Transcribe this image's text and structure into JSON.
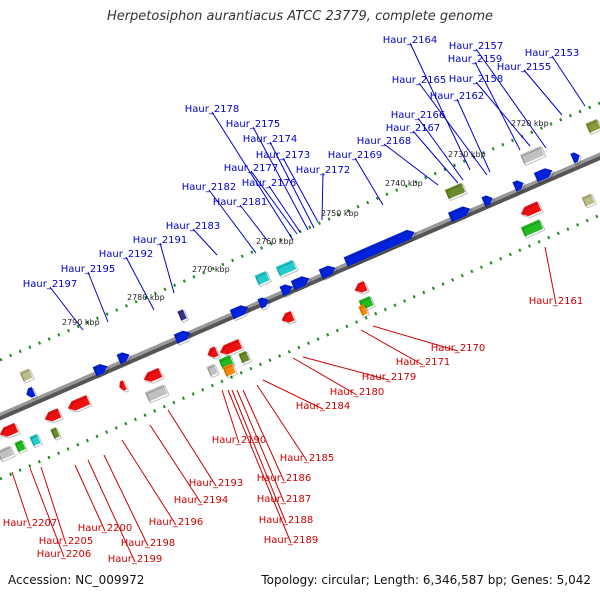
{
  "header": {
    "title": "Herpetosiphon aurantiacus ATCC 23779, complete genome"
  },
  "footer": {
    "accession": "Accession: NC_009972",
    "topology": "Topology: circular; Length: 6,346,587 bp; Genes: 5,042"
  },
  "colors": {
    "backbone": "#888888",
    "forward_label": "#0000cc",
    "reverse_label": "#cc0000",
    "tick": "#228822",
    "forward_gene": "#0022dd",
    "reverse_gene": "#ee1111"
  },
  "ticks": [
    "2720 kbp",
    "2730 kbp",
    "2740 kbp",
    "2750 kbp",
    "2760 kbp",
    "2770 kbp",
    "2780 kbp",
    "2790 kbp"
  ],
  "forward_genes": [
    "Haur_2153",
    "Haur_2155",
    "Haur_2157",
    "Haur_2158",
    "Haur_2159",
    "Haur_2162",
    "Haur_2164",
    "Haur_2165",
    "Haur_2166",
    "Haur_2167",
    "Haur_2168",
    "Haur_2169",
    "Haur_2172",
    "Haur_2173",
    "Haur_2174",
    "Haur_2175",
    "Haur_2176",
    "Haur_2177",
    "Haur_2178",
    "Haur_2181",
    "Haur_2182",
    "Haur_2183",
    "Haur_2191",
    "Haur_2192",
    "Haur_2195",
    "Haur_2197"
  ],
  "reverse_genes": [
    "Haur_2161",
    "Haur_2170",
    "Haur_2171",
    "Haur_2179",
    "Haur_2180",
    "Haur_2184",
    "Haur_2185",
    "Haur_2186",
    "Haur_2187",
    "Haur_2188",
    "Haur_2189",
    "Haur_2190",
    "Haur_2193",
    "Haur_2194",
    "Haur_2196",
    "Haur_2198",
    "Haur_2199",
    "Haur_2200",
    "Haur_2205",
    "Haur_2206",
    "Haur_2207"
  ]
}
